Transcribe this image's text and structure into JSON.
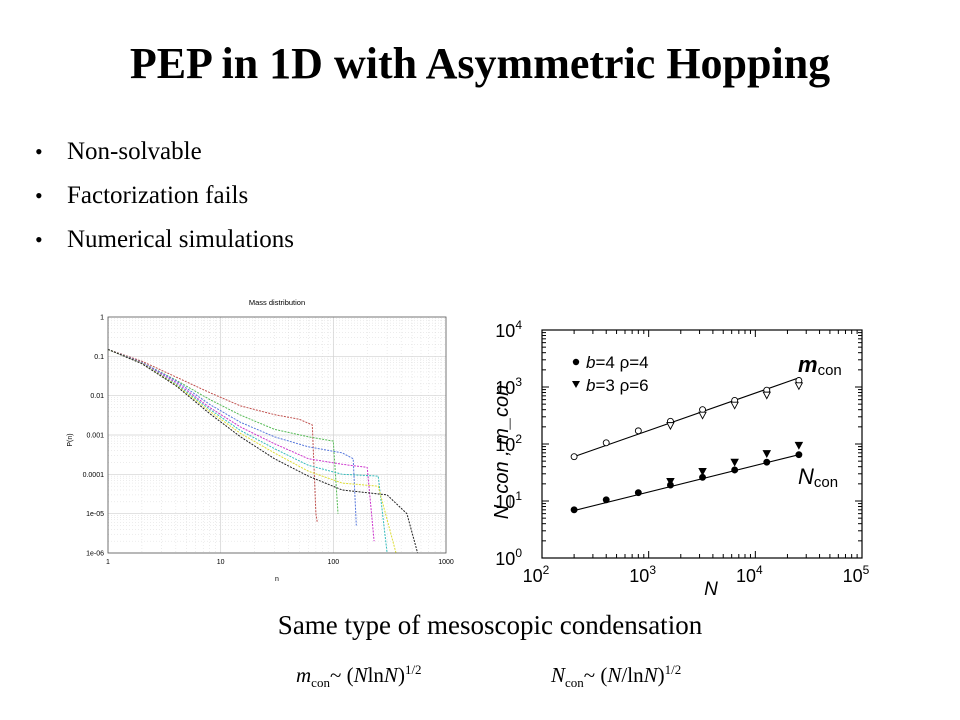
{
  "slide": {
    "title": "PEP in 1D with Asymmetric Hopping",
    "bullets": [
      "Non-solvable",
      "Factorization fails",
      "Numerical simulations"
    ],
    "caption": "Same type of mesoscopic  condensation",
    "formula_m": {
      "sym": "m",
      "sub": "con",
      "body1": "~ (",
      "N1": "N",
      "ln": "ln",
      "N2": "N",
      "body2": ")",
      "exp": "1/2"
    },
    "formula_n": {
      "sym": "N",
      "sub": "con",
      "body1": "~ (",
      "N1": "N",
      "ln": "/ln",
      "N2": "N",
      "body2": ")",
      "exp": "1/2"
    }
  },
  "chart_data": [
    {
      "type": "line",
      "title": "Mass distribution",
      "xlabel": "n",
      "ylabel": "P(n)",
      "x_scale": "log",
      "y_scale": "log",
      "xlim": [
        1,
        1000
      ],
      "ylim": [
        1e-06,
        1
      ],
      "x_ticks": [
        "1",
        "10",
        "100",
        "1000"
      ],
      "y_ticks": [
        "1",
        "0.1",
        "0.01",
        "0.001",
        "0.0001",
        "1e-05",
        "1e-06"
      ],
      "grid": true,
      "series": [
        {
          "color": "#c0504d",
          "values": [
            [
              1,
              0.15
            ],
            [
              2,
              0.075
            ],
            [
              4,
              0.03
            ],
            [
              8,
              0.012
            ],
            [
              15,
              0.0055
            ],
            [
              30,
              0.0033
            ],
            [
              50,
              0.0025
            ],
            [
              65,
              0.0018
            ],
            [
              70,
              1e-05
            ],
            [
              72,
              6e-06
            ]
          ]
        },
        {
          "color": "#55bb55",
          "values": [
            [
              1,
              0.15
            ],
            [
              2,
              0.07
            ],
            [
              4,
              0.025
            ],
            [
              8,
              0.008
            ],
            [
              15,
              0.0032
            ],
            [
              30,
              0.0014
            ],
            [
              60,
              0.0009
            ],
            [
              100,
              0.0007
            ],
            [
              110,
              1e-05
            ]
          ]
        },
        {
          "color": "#5577dd",
          "values": [
            [
              1,
              0.15
            ],
            [
              2,
              0.07
            ],
            [
              4,
              0.024
            ],
            [
              8,
              0.006
            ],
            [
              15,
              0.0021
            ],
            [
              30,
              0.0009
            ],
            [
              60,
              0.0005
            ],
            [
              120,
              0.00035
            ],
            [
              150,
              0.00025
            ],
            [
              160,
              5e-06
            ]
          ]
        },
        {
          "color": "#cc33cc",
          "values": [
            [
              1,
              0.15
            ],
            [
              2,
              0.068
            ],
            [
              4,
              0.022
            ],
            [
              8,
              0.005
            ],
            [
              15,
              0.0016
            ],
            [
              30,
              0.0006
            ],
            [
              60,
              0.00025
            ],
            [
              120,
              0.00018
            ],
            [
              200,
              0.00015
            ],
            [
              230,
              2e-06
            ]
          ]
        },
        {
          "color": "#33bbbb",
          "values": [
            [
              1,
              0.15
            ],
            [
              2,
              0.067
            ],
            [
              4,
              0.02
            ],
            [
              8,
              0.0045
            ],
            [
              15,
              0.0013
            ],
            [
              30,
              0.00045
            ],
            [
              60,
              0.00017
            ],
            [
              120,
              0.0001
            ],
            [
              250,
              9e-05
            ],
            [
              300,
              1e-06
            ]
          ]
        },
        {
          "color": "#dddd33",
          "values": [
            [
              1,
              0.15
            ],
            [
              2,
              0.066
            ],
            [
              4,
              0.019
            ],
            [
              8,
              0.004
            ],
            [
              15,
              0.0011
            ],
            [
              30,
              0.00035
            ],
            [
              60,
              0.00012
            ],
            [
              120,
              6e-05
            ],
            [
              250,
              5e-05
            ],
            [
              360,
              1e-06
            ]
          ]
        },
        {
          "color": "#222222",
          "values": [
            [
              1,
              0.15
            ],
            [
              2,
              0.065
            ],
            [
              4,
              0.018
            ],
            [
              8,
              0.0035
            ],
            [
              15,
              0.0009
            ],
            [
              30,
              0.00025
            ],
            [
              60,
              9e-05
            ],
            [
              120,
              4e-05
            ],
            [
              300,
              3e-05
            ],
            [
              450,
              1e-05
            ],
            [
              560,
              1e-06
            ]
          ]
        }
      ]
    },
    {
      "type": "scatter",
      "xlabel": "N",
      "ylabel": "N_con , m_con",
      "x_scale": "log",
      "y_scale": "log",
      "xlim": [
        100,
        100000
      ],
      "ylim": [
        1,
        10000
      ],
      "x_ticks": [
        {
          "base": "10",
          "exp": "2",
          "value": 100
        },
        {
          "base": "10",
          "exp": "3",
          "value": 1000
        },
        {
          "base": "10",
          "exp": "4",
          "value": 10000
        },
        {
          "base": "10",
          "exp": "5",
          "value": 100000
        }
      ],
      "y_ticks": [
        {
          "base": "10",
          "exp": "0",
          "value": 1
        },
        {
          "base": "10",
          "exp": "1",
          "value": 10
        },
        {
          "base": "10",
          "exp": "2",
          "value": 100
        },
        {
          "base": "10",
          "exp": "3",
          "value": 1000
        },
        {
          "base": "10",
          "exp": "4",
          "value": 10000
        }
      ],
      "legend": "top-left",
      "annotations": [
        {
          "sym": "m",
          "sub": "con",
          "at": [
            3000,
            1500
          ]
        },
        {
          "sym": "N",
          "sub": "con",
          "at": [
            3000,
            10
          ]
        }
      ],
      "series": [
        {
          "name": "b=4  ρ=4",
          "name_sym": "b",
          "name_rest": "=4  ρ=4",
          "marker": "filled-circle",
          "hollow_marker": "open-circle",
          "N_con": [
            [
              200,
              7
            ],
            [
              400,
              10.5
            ],
            [
              800,
              14
            ],
            [
              1600,
              19
            ],
            [
              3200,
              26
            ],
            [
              6400,
              35
            ],
            [
              12800,
              48
            ],
            [
              25600,
              65
            ]
          ],
          "m_con": [
            [
              200,
              60
            ],
            [
              400,
              105
            ],
            [
              800,
              170
            ],
            [
              1600,
              250
            ],
            [
              3200,
              400
            ],
            [
              6400,
              580
            ],
            [
              12800,
              880
            ],
            [
              25600,
              1300
            ]
          ]
        },
        {
          "name": "b=3  ρ=6",
          "name_sym": "b",
          "name_rest": "=3  ρ=6",
          "marker": "filled-triangle-down",
          "hollow_marker": "open-triangle-down",
          "N_con": [
            [
              1600,
              22
            ],
            [
              3200,
              33
            ],
            [
              6400,
              48
            ],
            [
              12800,
              68
            ],
            [
              25600,
              95
            ]
          ],
          "m_con": [
            [
              1600,
              210
            ],
            [
              3200,
              320
            ],
            [
              6400,
              480
            ],
            [
              12800,
              720
            ],
            [
              25600,
              1050
            ]
          ]
        }
      ],
      "fit_lines": [
        {
          "from": [
            200,
            60
          ],
          "to": [
            25600,
            1450
          ]
        },
        {
          "from": [
            200,
            6.8
          ],
          "to": [
            25600,
            65
          ]
        }
      ]
    }
  ]
}
